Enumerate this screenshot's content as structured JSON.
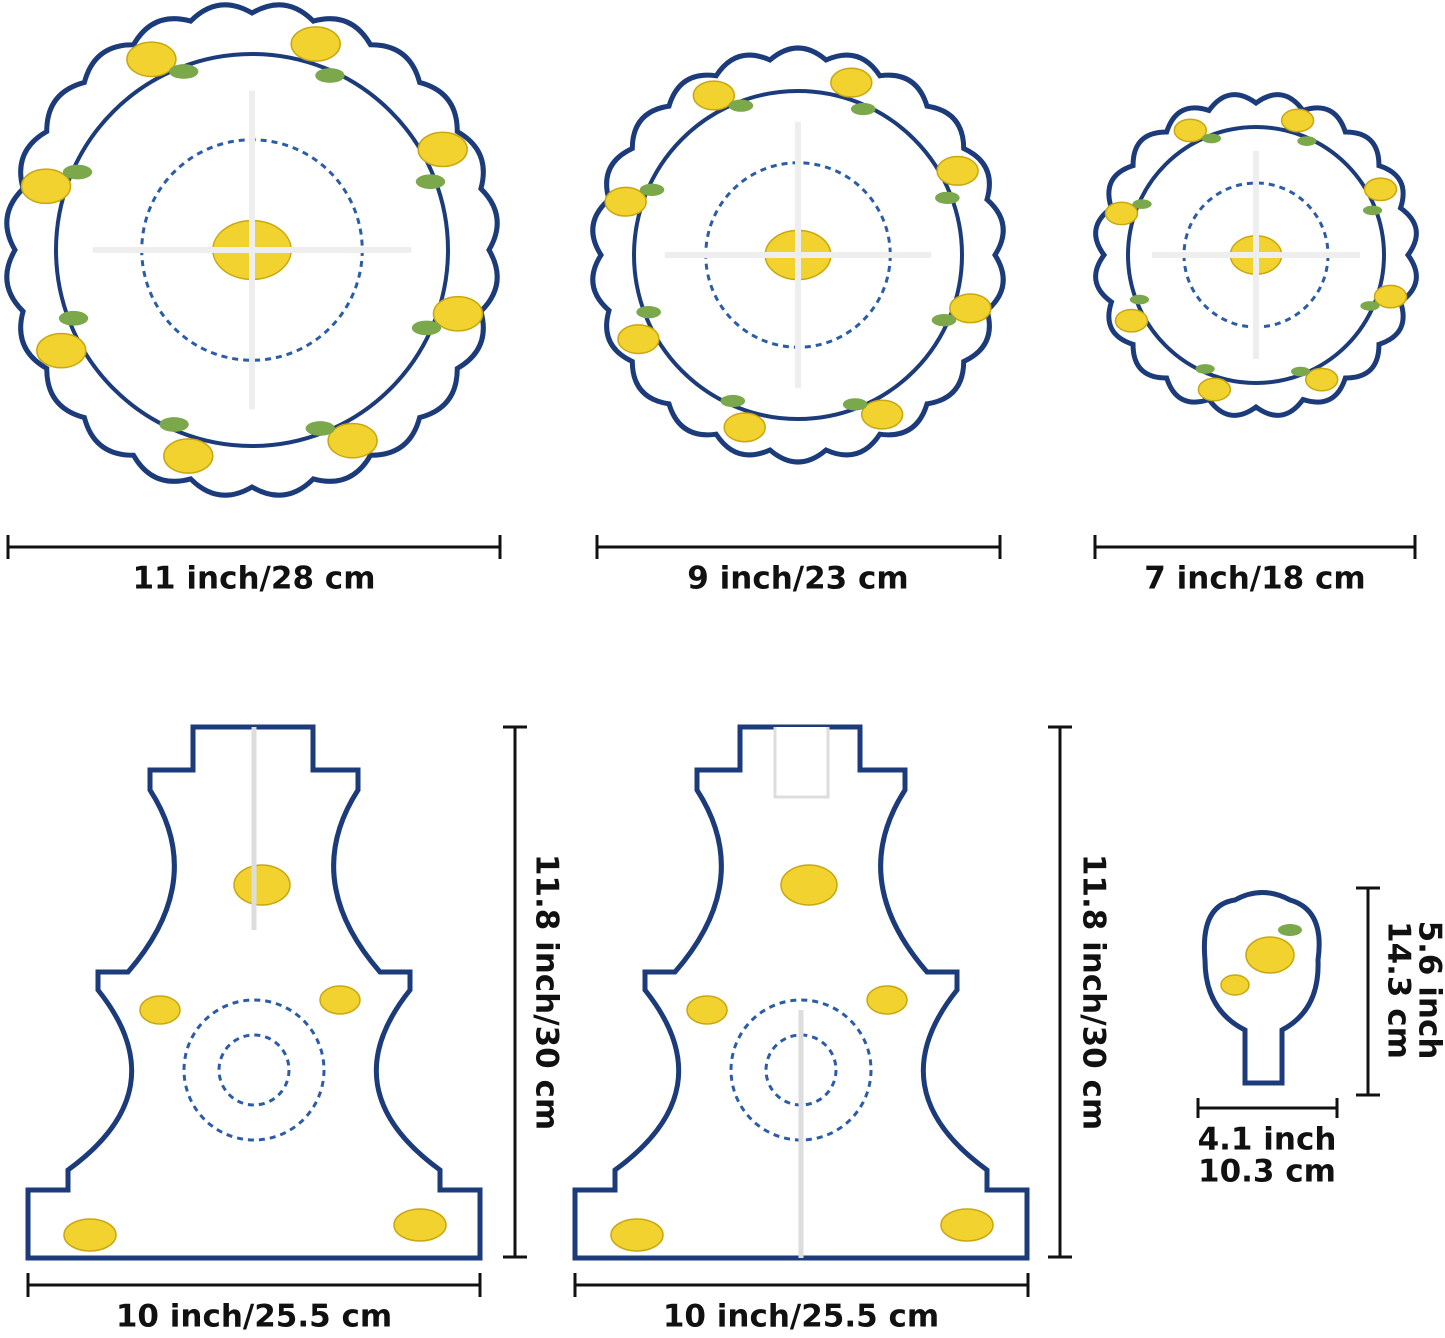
{
  "plates": [
    {
      "label": "11 inch/28 cm"
    },
    {
      "label": "9 inch/23 cm"
    },
    {
      "label": "7 inch/18 cm"
    }
  ],
  "stands": [
    {
      "height_label": "11.8 inch/30 cm",
      "width_label": "10 inch/25.5 cm"
    },
    {
      "height_label": "11.8 inch/30 cm",
      "width_label": "10 inch/25.5 cm"
    }
  ],
  "topper": {
    "height_label": [
      "5.6 inch",
      "14.3 cm"
    ],
    "width_label": [
      "4.1 inch",
      "10.3 cm"
    ]
  }
}
